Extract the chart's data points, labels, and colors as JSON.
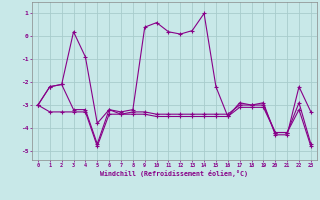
{
  "xlabel": "Windchill (Refroidissement éolien,°C)",
  "background_color": "#c8e8e8",
  "grid_color": "#a8cccc",
  "line_color": "#880088",
  "xlim_min": -0.5,
  "xlim_max": 23.5,
  "ylim_min": -5.4,
  "ylim_max": 1.5,
  "yticks": [
    1,
    0,
    -1,
    -2,
    -3,
    -4,
    -5
  ],
  "xticks": [
    0,
    1,
    2,
    3,
    4,
    5,
    6,
    7,
    8,
    9,
    10,
    11,
    12,
    13,
    14,
    15,
    16,
    17,
    18,
    19,
    20,
    21,
    22,
    23
  ],
  "hours": [
    0,
    1,
    2,
    3,
    4,
    5,
    6,
    7,
    8,
    9,
    10,
    11,
    12,
    13,
    14,
    15,
    16,
    17,
    18,
    19,
    20,
    21,
    22,
    23
  ],
  "series1": [
    -3.0,
    -2.2,
    -2.1,
    0.2,
    -0.9,
    -3.8,
    -3.2,
    -3.3,
    -3.2,
    0.4,
    0.6,
    0.2,
    0.1,
    0.25,
    1.0,
    -2.2,
    -3.5,
    -2.9,
    -3.0,
    -2.9,
    -4.3,
    -4.3,
    -2.2,
    -3.3
  ],
  "series2": [
    -3.0,
    -2.2,
    -2.1,
    -3.2,
    -3.2,
    -4.7,
    -3.2,
    -3.4,
    -3.3,
    -3.3,
    -3.4,
    -3.4,
    -3.4,
    -3.4,
    -3.4,
    -3.4,
    -3.4,
    -3.0,
    -3.0,
    -3.0,
    -4.2,
    -4.2,
    -2.9,
    -4.7
  ],
  "series3": [
    -3.0,
    -3.3,
    -3.3,
    -3.3,
    -3.3,
    -4.8,
    -3.4,
    -3.4,
    -3.4,
    -3.4,
    -3.5,
    -3.5,
    -3.5,
    -3.5,
    -3.5,
    -3.5,
    -3.5,
    -3.1,
    -3.1,
    -3.1,
    -4.2,
    -4.2,
    -3.2,
    -4.8
  ]
}
